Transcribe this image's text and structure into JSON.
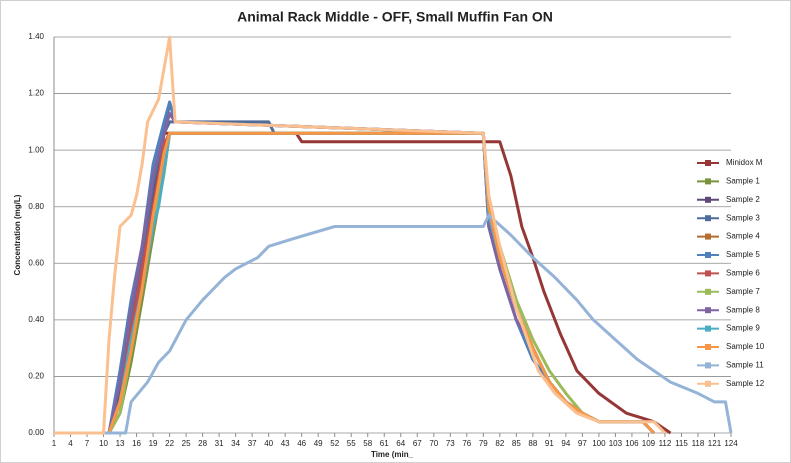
{
  "chart_data": {
    "type": "line",
    "title": "Animal Rack Middle - OFF, Small Muffin Fan ON",
    "x_label": "Time (min_",
    "y_label": "Concentration (mg/L)",
    "xlim": [
      1,
      124
    ],
    "xticks": [
      1,
      4,
      7,
      10,
      13,
      16,
      19,
      22,
      25,
      28,
      31,
      34,
      37,
      40,
      43,
      46,
      49,
      52,
      55,
      58,
      61,
      64,
      67,
      70,
      73,
      76,
      79,
      82,
      85,
      88,
      91,
      94,
      97,
      100,
      103,
      106,
      109,
      112,
      115,
      118,
      121,
      124
    ],
    "ylim": [
      0,
      1.4
    ],
    "yticks": [
      {
        "value": 0,
        "label": "0.00"
      },
      {
        "value": 0.2,
        "label": "0.20"
      },
      {
        "value": 0.4,
        "label": "0.40"
      },
      {
        "value": 0.6,
        "label": "0.60"
      },
      {
        "value": 0.8,
        "label": "0.80"
      },
      {
        "value": 1.0,
        "label": "1.00"
      },
      {
        "value": 1.2,
        "label": "1.20"
      },
      {
        "value": 1.4,
        "label": "1.40"
      }
    ],
    "grid": true,
    "legend": "right",
    "series": [
      {
        "name": "Minidox M",
        "color": "#953735",
        "x": [
          1,
          11,
          13,
          15,
          17,
          19,
          21,
          45,
          46,
          81,
          82,
          84,
          86,
          88,
          90,
          93,
          96,
          100,
          105,
          110,
          113
        ],
        "values": [
          0,
          0,
          0.11,
          0.33,
          0.55,
          0.8,
          1.06,
          1.06,
          1.03,
          1.03,
          1.03,
          0.91,
          0.73,
          0.62,
          0.5,
          0.35,
          0.22,
          0.14,
          0.07,
          0.04,
          0
        ]
      },
      {
        "name": "Sample 1",
        "color": "#77933c",
        "x": [
          1,
          11,
          13,
          15,
          17,
          19,
          21,
          22,
          79,
          80,
          82,
          85,
          88,
          91,
          94,
          97,
          100,
          104,
          108,
          110
        ],
        "values": [
          0,
          0,
          0.07,
          0.25,
          0.47,
          0.7,
          0.92,
          1.06,
          1.06,
          0.77,
          0.62,
          0.44,
          0.3,
          0.18,
          0.11,
          0.07,
          0.04,
          0.04,
          0.04,
          0
        ]
      },
      {
        "name": "Sample 2",
        "color": "#5f497a",
        "x": [
          1,
          11,
          13,
          15,
          17,
          19,
          21,
          22,
          23,
          79,
          80,
          82,
          85,
          88,
          91,
          94,
          97,
          100,
          104,
          108,
          110
        ],
        "values": [
          0,
          0,
          0.14,
          0.36,
          0.6,
          0.84,
          1.06,
          1.17,
          1.1,
          1.06,
          0.77,
          0.62,
          0.44,
          0.3,
          0.18,
          0.11,
          0.07,
          0.04,
          0.04,
          0.04,
          0
        ]
      },
      {
        "name": "Sample 3",
        "color": "#4f6d9b",
        "x": [
          1,
          11,
          13,
          15,
          17,
          19,
          21,
          22,
          40,
          41,
          79,
          80,
          82,
          85,
          88,
          91,
          94,
          97,
          100,
          104,
          108,
          110
        ],
        "values": [
          0,
          0,
          0.18,
          0.4,
          0.62,
          0.88,
          1.06,
          1.1,
          1.1,
          1.06,
          1.06,
          0.73,
          0.58,
          0.4,
          0.26,
          0.18,
          0.11,
          0.07,
          0.04,
          0.04,
          0.04,
          0
        ]
      },
      {
        "name": "Sample 4",
        "color": "#b66d31",
        "x": [
          1,
          11,
          13,
          15,
          17,
          19,
          21,
          22,
          79,
          80,
          82,
          85,
          88,
          91,
          94,
          97,
          100,
          104,
          108,
          110
        ],
        "values": [
          0,
          0,
          0.11,
          0.33,
          0.55,
          0.77,
          0.99,
          1.06,
          1.06,
          0.77,
          0.62,
          0.44,
          0.3,
          0.18,
          0.11,
          0.07,
          0.04,
          0.04,
          0.04,
          0
        ]
      },
      {
        "name": "Sample 5",
        "color": "#4f81bd",
        "x": [
          1,
          11,
          13,
          15,
          17,
          19,
          21,
          22,
          23,
          79,
          80,
          82,
          85,
          88,
          91,
          94,
          97,
          100,
          104,
          108,
          110
        ],
        "values": [
          0,
          0,
          0.22,
          0.47,
          0.66,
          0.95,
          1.1,
          1.17,
          1.1,
          1.06,
          0.73,
          0.58,
          0.4,
          0.26,
          0.18,
          0.11,
          0.07,
          0.04,
          0.04,
          0.04,
          0
        ]
      },
      {
        "name": "Sample 6",
        "color": "#c0504d",
        "x": [
          1,
          11,
          13,
          15,
          17,
          19,
          21,
          22,
          79,
          80,
          82,
          85,
          88,
          91,
          94,
          97,
          100,
          104,
          108,
          110
        ],
        "values": [
          0,
          0,
          0.11,
          0.36,
          0.58,
          0.8,
          1.02,
          1.06,
          1.06,
          0.77,
          0.62,
          0.44,
          0.3,
          0.18,
          0.11,
          0.07,
          0.04,
          0.04,
          0.04,
          0
        ]
      },
      {
        "name": "Sample 7",
        "color": "#9bbb59",
        "x": [
          1,
          11,
          13,
          15,
          17,
          19,
          21,
          22,
          79,
          80,
          82,
          85,
          88,
          91,
          94,
          97,
          100,
          104,
          108,
          110
        ],
        "values": [
          0,
          0,
          0.07,
          0.29,
          0.51,
          0.73,
          0.92,
          1.06,
          1.06,
          0.8,
          0.66,
          0.47,
          0.33,
          0.22,
          0.14,
          0.07,
          0.04,
          0.04,
          0.04,
          0
        ]
      },
      {
        "name": "Sample 8",
        "color": "#8064a2",
        "x": [
          1,
          11,
          13,
          15,
          17,
          19,
          21,
          22,
          23,
          79,
          80,
          82,
          85,
          88,
          91,
          94,
          97,
          100,
          104,
          108,
          110
        ],
        "values": [
          0,
          0,
          0.18,
          0.44,
          0.66,
          0.91,
          1.06,
          1.13,
          1.1,
          1.06,
          0.73,
          0.58,
          0.4,
          0.3,
          0.18,
          0.11,
          0.07,
          0.04,
          0.04,
          0.04,
          0
        ]
      },
      {
        "name": "Sample 9",
        "color": "#4bacc6",
        "x": [
          1,
          11,
          13,
          15,
          17,
          19,
          20,
          22,
          79,
          80,
          82,
          85,
          88,
          91,
          94,
          97,
          100,
          104,
          108,
          110
        ],
        "values": [
          0,
          0,
          0.11,
          0.33,
          0.51,
          0.73,
          0.8,
          1.06,
          1.06,
          0.77,
          0.62,
          0.44,
          0.3,
          0.18,
          0.11,
          0.07,
          0.04,
          0.04,
          0.04,
          0
        ]
      },
      {
        "name": "Sample 10",
        "color": "#f79646",
        "x": [
          1,
          11,
          13,
          15,
          17,
          19,
          21,
          22,
          79,
          80,
          82,
          85,
          88,
          91,
          94,
          97,
          100,
          104,
          108,
          110
        ],
        "values": [
          0,
          0,
          0.11,
          0.29,
          0.51,
          0.77,
          0.99,
          1.06,
          1.06,
          0.8,
          0.62,
          0.44,
          0.3,
          0.18,
          0.11,
          0.07,
          0.04,
          0.04,
          0.04,
          0
        ]
      },
      {
        "name": "Sample 11",
        "color": "#95b3d7",
        "x": [
          1,
          14,
          15,
          18,
          20,
          22,
          25,
          28,
          32,
          34,
          38,
          40,
          45,
          52,
          79,
          80,
          84,
          88,
          92,
          96,
          99,
          103,
          107,
          110,
          113,
          118,
          121,
          123,
          124
        ],
        "values": [
          0,
          0,
          0.11,
          0.18,
          0.25,
          0.29,
          0.4,
          0.47,
          0.55,
          0.58,
          0.62,
          0.66,
          0.69,
          0.73,
          0.73,
          0.77,
          0.7,
          0.62,
          0.55,
          0.47,
          0.4,
          0.33,
          0.26,
          0.22,
          0.18,
          0.14,
          0.11,
          0.11,
          0
        ]
      },
      {
        "name": "Sample 12",
        "color": "#fac090",
        "x": [
          1,
          10,
          11,
          12,
          13,
          15,
          16,
          17,
          18,
          20,
          21,
          22,
          23,
          79,
          80,
          82,
          85,
          89,
          92,
          96,
          100,
          110,
          112
        ],
        "values": [
          0,
          0,
          0.33,
          0.55,
          0.73,
          0.77,
          0.84,
          0.95,
          1.1,
          1.18,
          1.29,
          1.4,
          1.1,
          1.06,
          0.84,
          0.66,
          0.44,
          0.22,
          0.14,
          0.07,
          0.04,
          0.04,
          0
        ]
      }
    ]
  }
}
